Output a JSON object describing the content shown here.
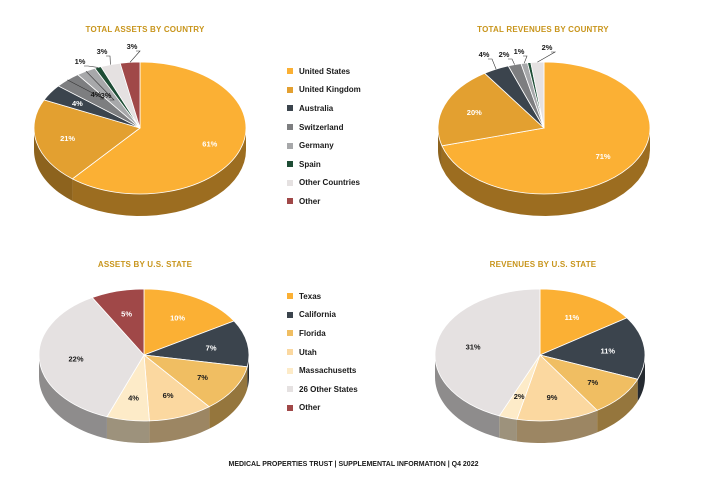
{
  "chart_data": [
    {
      "id": "assets-country",
      "type": "pie",
      "title": "TOTAL ASSETS BY COUNTRY",
      "categories": [
        "United States",
        "United Kingdom",
        "Australia",
        "Switzerland",
        "Germany",
        "Spain",
        "Other Countries",
        "Other"
      ],
      "values": [
        61,
        21,
        4,
        4,
        3,
        1,
        3,
        3
      ],
      "labels": [
        "61%",
        "21%",
        "4%",
        "4%",
        "3%",
        "1%",
        "3%",
        "3%"
      ],
      "colors": [
        "#fbb034",
        "#e3a030",
        "#3b444d",
        "#7d7e80",
        "#a7a8aa",
        "#1e4d35",
        "#e5e1e1",
        "#a04848"
      ]
    },
    {
      "id": "revenues-country",
      "type": "pie",
      "title": "TOTAL REVENUES BY COUNTRY",
      "categories": [
        "United States",
        "United Kingdom",
        "Australia",
        "Switzerland",
        "Germany",
        "Spain",
        "Other Countries"
      ],
      "values": [
        71,
        20,
        4,
        2,
        1,
        0.5,
        2
      ],
      "labels": [
        "71%",
        "20%",
        "4%",
        "2%",
        "1%",
        "",
        "2%"
      ],
      "colors": [
        "#fbb034",
        "#e3a030",
        "#3b444d",
        "#7d7e80",
        "#a7a8aa",
        "#1e4d35",
        "#e5e1e1"
      ]
    },
    {
      "id": "assets-state",
      "type": "pie",
      "title": "ASSETS BY U.S. STATE",
      "categories": [
        "Texas",
        "California",
        "Florida",
        "Utah",
        "Massachusetts",
        "26 Other States",
        "Other"
      ],
      "values": [
        10,
        7,
        7,
        6,
        4,
        22,
        5
      ],
      "labels": [
        "10%",
        "7%",
        "7%",
        "6%",
        "4%",
        "22%",
        "5%"
      ],
      "colors": [
        "#fbb034",
        "#3b444d",
        "#f0be62",
        "#fbd8a0",
        "#fdebc8",
        "#e5e1e1",
        "#a04848"
      ]
    },
    {
      "id": "revenues-state",
      "type": "pie",
      "title": "REVENUES BY U.S. STATE",
      "categories": [
        "Texas",
        "California",
        "Florida",
        "Utah",
        "Massachusetts",
        "26 Other States"
      ],
      "values": [
        11,
        11,
        7,
        9,
        2,
        31
      ],
      "labels": [
        "11%",
        "11%",
        "7%",
        "9%",
        "2%",
        "31%"
      ],
      "colors": [
        "#fbb034",
        "#3b444d",
        "#f0be62",
        "#fbd8a0",
        "#fdebc8",
        "#e5e1e1"
      ]
    }
  ],
  "legend_country": [
    {
      "label": "United States",
      "color": "#fbb034"
    },
    {
      "label": "United Kingdom",
      "color": "#e3a030"
    },
    {
      "label": "Australia",
      "color": "#3b444d"
    },
    {
      "label": "Switzerland",
      "color": "#7d7e80"
    },
    {
      "label": "Germany",
      "color": "#a7a8aa"
    },
    {
      "label": "Spain",
      "color": "#1e4d35"
    },
    {
      "label": "Other Countries",
      "color": "#e5e1e1"
    },
    {
      "label": "Other",
      "color": "#a04848"
    }
  ],
  "legend_state": [
    {
      "label": "Texas",
      "color": "#fbb034"
    },
    {
      "label": "California",
      "color": "#3b444d"
    },
    {
      "label": "Florida",
      "color": "#f0be62"
    },
    {
      "label": "Utah",
      "color": "#fbd8a0"
    },
    {
      "label": "Massachusetts",
      "color": "#fdebc8"
    },
    {
      "label": "26 Other States",
      "color": "#e5e1e1"
    },
    {
      "label": "Other",
      "color": "#a04848"
    }
  ],
  "footer": "MEDICAL PROPERTIES TRUST | SUPPLEMENTAL INFORMATION | Q4 2022"
}
